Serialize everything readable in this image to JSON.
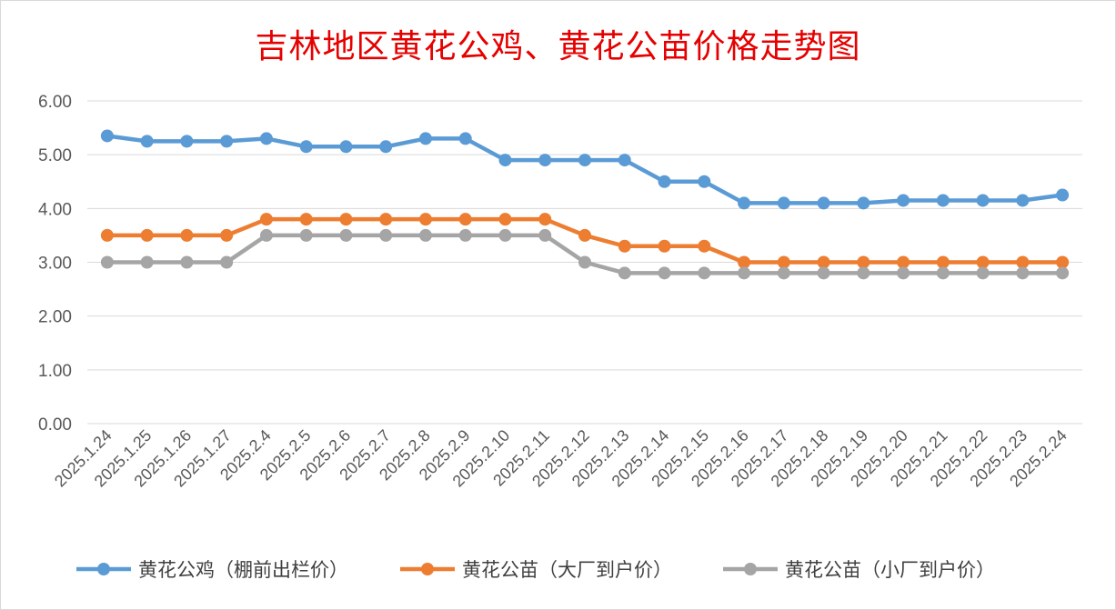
{
  "chart_data": {
    "type": "line",
    "title": "吉林地区黄花公鸡、黄花公苗价格走势图",
    "xlabel": "",
    "ylabel": "",
    "ylim": [
      0,
      6
    ],
    "yticks": [
      "0.00",
      "1.00",
      "2.00",
      "3.00",
      "4.00",
      "5.00",
      "6.00"
    ],
    "grid": true,
    "legend_position": "bottom",
    "categories": [
      "2025.1.24",
      "2025.1.25",
      "2025.1.26",
      "2025.1.27",
      "2025.2.4",
      "2025.2.5",
      "2025.2.6",
      "2025.2.7",
      "2025.2.8",
      "2025.2.9",
      "2025.2.10",
      "2025.2.11",
      "2025.2.12",
      "2025.2.13",
      "2025.2.14",
      "2025.2.15",
      "2025.2.16",
      "2025.2.17",
      "2025.2.18",
      "2025.2.19",
      "2025.2.20",
      "2025.2.21",
      "2025.2.22",
      "2025.2.23",
      "2025.2.24"
    ],
    "series": [
      {
        "name": "黄花公鸡（棚前出栏价）",
        "color": "#5b9bd5",
        "values": [
          5.35,
          5.25,
          5.25,
          5.25,
          5.3,
          5.15,
          5.15,
          5.15,
          5.3,
          5.3,
          4.9,
          4.9,
          4.9,
          4.9,
          4.5,
          4.5,
          4.1,
          4.1,
          4.1,
          4.1,
          4.15,
          4.15,
          4.15,
          4.15,
          4.25
        ]
      },
      {
        "name": "黄花公苗（大厂到户价）",
        "color": "#ed7d31",
        "values": [
          3.5,
          3.5,
          3.5,
          3.5,
          3.8,
          3.8,
          3.8,
          3.8,
          3.8,
          3.8,
          3.8,
          3.8,
          3.5,
          3.3,
          3.3,
          3.3,
          3.0,
          3.0,
          3.0,
          3.0,
          3.0,
          3.0,
          3.0,
          3.0,
          3.0
        ]
      },
      {
        "name": "黄花公苗（小厂到户价）",
        "color": "#a5a5a5",
        "values": [
          3.0,
          3.0,
          3.0,
          3.0,
          3.5,
          3.5,
          3.5,
          3.5,
          3.5,
          3.5,
          3.5,
          3.5,
          3.0,
          2.8,
          2.8,
          2.8,
          2.8,
          2.8,
          2.8,
          2.8,
          2.8,
          2.8,
          2.8,
          2.8,
          2.8
        ]
      }
    ]
  }
}
